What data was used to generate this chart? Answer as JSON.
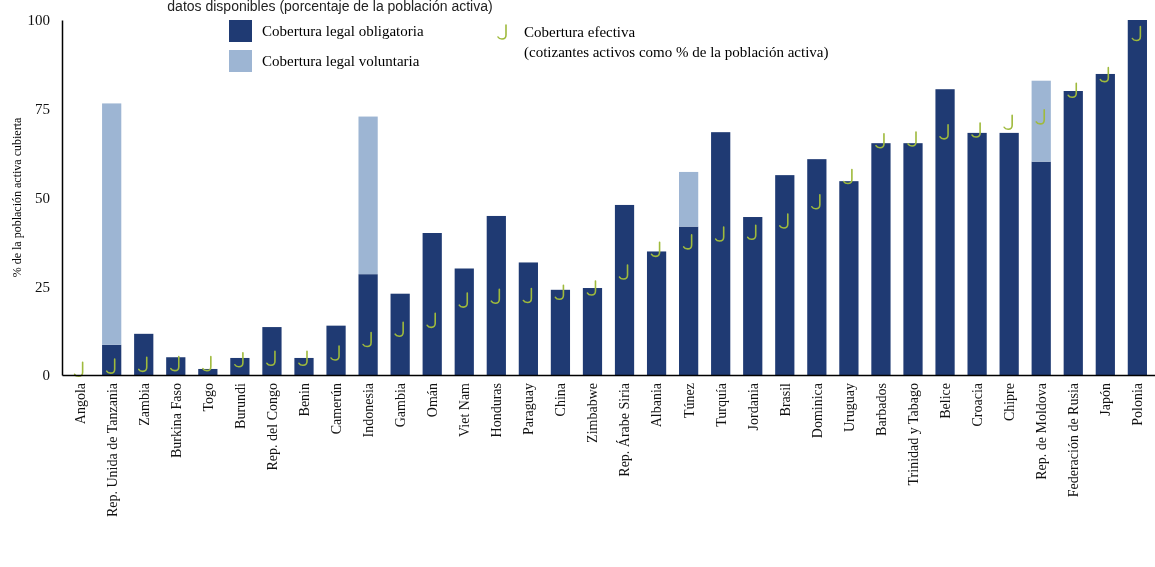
{
  "chart_data": {
    "type": "bar",
    "title": "datos disponibles (porcentaje de la población activa)",
    "ylabel": "% de la población activa cubierta",
    "categories": [
      "Angola",
      "Rep. Unida de Tanzania",
      "Zambia",
      "Burkina Faso",
      "Togo",
      "Burundi",
      "Rep. del Congo",
      "Benin",
      "Camerún",
      "Indonesia",
      "Gambia",
      "Omán",
      "Viet Nam",
      "Honduras",
      "Paraguay",
      "China",
      "Zimbabwe",
      "Rep. Árabe Siria",
      "Albania",
      "Túnez",
      "Turquía",
      "Jordania",
      "Brasil",
      "Dominica",
      "Uruguay",
      "Barbados",
      "Trinidad y Tabago",
      "Belice",
      "Croacia",
      "Chipre",
      "Rep. de Moldova",
      "Federación de Rusia",
      "Japón",
      "Polonia"
    ],
    "stacked": true,
    "series": [
      {
        "name": "Cobertura legal obligatoria",
        "color": "#1f3a73",
        "values": [
          0,
          8.5,
          11.6,
          5,
          1.7,
          4.8,
          13.5,
          4.8,
          13.9,
          28.4,
          22.9,
          40,
          30,
          44.8,
          31.7,
          24,
          24.5,
          47.9,
          34.8,
          41.8,
          68.4,
          44.5,
          56.3,
          60.8,
          54.6,
          65.3,
          65.3,
          80.5,
          68.2,
          68.2,
          60.1,
          80,
          84.8,
          100
        ]
      },
      {
        "name": "Cobertura legal voluntaria",
        "color": "#9db5d3",
        "values": [
          0,
          68,
          0,
          0,
          0,
          0,
          0,
          0,
          0,
          44.4,
          0,
          0,
          0,
          0,
          0,
          0,
          0,
          0,
          0,
          15.4,
          0,
          0,
          0,
          0,
          0,
          0,
          0,
          0,
          0,
          0,
          22.8,
          0,
          0,
          0
        ]
      },
      {
        "name": "Cobertura efectiva\n(cotizantes activos como % de la población activa)",
        "type": "scatter",
        "color": "#9fba3c",
        "values": [
          1.6,
          2.5,
          3,
          3.2,
          3.2,
          4.3,
          4.7,
          4.7,
          6.2,
          10,
          12.9,
          15.4,
          21.1,
          22.2,
          22.4,
          23.3,
          24.5,
          29,
          35.4,
          37.5,
          39.7,
          40.2,
          43.4,
          48.8,
          55.9,
          66,
          66.5,
          68.5,
          69,
          71.2,
          72.7,
          80.2,
          84.6,
          96.2
        ]
      }
    ],
    "ylim": [
      0,
      100
    ],
    "yticks": [
      0,
      25,
      50,
      75,
      100
    ],
    "grid": false,
    "legend": "top"
  }
}
